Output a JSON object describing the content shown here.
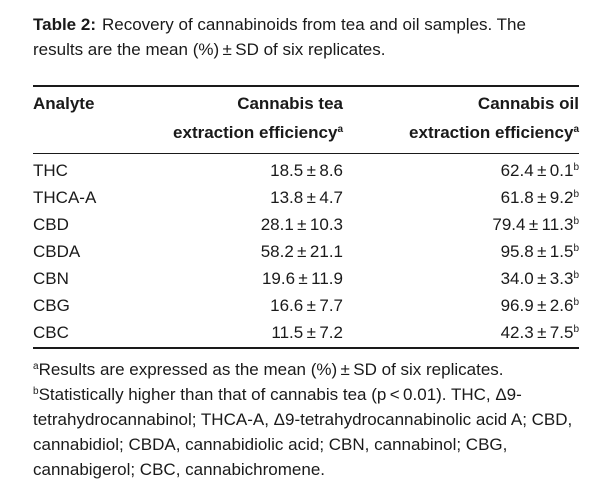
{
  "caption": {
    "label": "Table 2:",
    "text": "Recovery of cannabinoids from tea and oil samples. The results are the mean (%) ± SD of six replicates."
  },
  "table": {
    "headers": {
      "analyte": "Analyte",
      "tea_line1": "Cannabis tea",
      "tea_line2": "extraction efficiency",
      "tea_sup": "a",
      "oil_line1": "Cannabis oil",
      "oil_line2": "extraction efficiency",
      "oil_sup": "a"
    },
    "rows": [
      {
        "analyte": "THC",
        "tea": "18.5 ± 8.6",
        "oil": "62.4 ± 0.1",
        "oil_sup": "b"
      },
      {
        "analyte": "THCA-A",
        "tea": "13.8 ± 4.7",
        "oil": "61.8 ± 9.2",
        "oil_sup": "b"
      },
      {
        "analyte": "CBD",
        "tea": "28.1 ± 10.3",
        "oil": "79.4 ± 11.3",
        "oil_sup": "b"
      },
      {
        "analyte": "CBDA",
        "tea": "58.2 ± 21.1",
        "oil": "95.8 ± 1.5",
        "oil_sup": "b"
      },
      {
        "analyte": "CBN",
        "tea": "19.6 ± 11.9",
        "oil": "34.0 ± 3.3",
        "oil_sup": "b"
      },
      {
        "analyte": "CBG",
        "tea": "16.6 ± 7.7",
        "oil": "96.9 ± 2.6",
        "oil_sup": "b"
      },
      {
        "analyte": "CBC",
        "tea": "11.5 ± 7.2",
        "oil": "42.3 ± 7.5",
        "oil_sup": "b"
      }
    ]
  },
  "footnotes": {
    "a_mark": "a",
    "a_text": "Results are expressed as the mean (%) ± SD of six replicates.",
    "b_mark": "b",
    "b_text": "Statistically higher than that of cannabis tea (p < 0.01). THC, Δ9-tetrahydrocannabinol; THCA-A, Δ9-tetrahydrocannabinolic acid A; CBD, cannabidiol; CBDA, cannabidiolic acid; CBN, cannabinol; CBG, cannabigerol; CBC, cannabichromene."
  }
}
